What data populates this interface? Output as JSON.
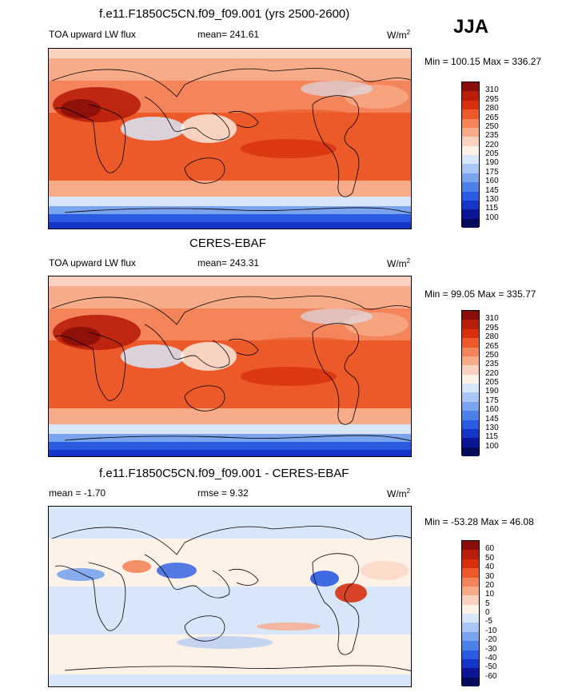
{
  "season": "JJA",
  "unit": "W/m",
  "unit_sup": "2",
  "panels": [
    {
      "title": "f.e11.F1850C5CN.f09_f09.001 (yrs 2500-2600)",
      "left": "TOA upward LW flux",
      "stat": "mean= 241.61",
      "minmax": "Min = 100.15 Max = 336.27",
      "levels": [
        "310",
        "295",
        "280",
        "265",
        "250",
        "235",
        "220",
        "205",
        "190",
        "175",
        "160",
        "145",
        "130",
        "115",
        "100"
      ],
      "colors": [
        "#8b0d0a",
        "#b81e0a",
        "#d8300e",
        "#ec5a2a",
        "#f4845a",
        "#f8ab89",
        "#fbd2bf",
        "#fdf1e8",
        "#d7e6f8",
        "#a9c6f4",
        "#7aa4ee",
        "#4d80e8",
        "#2a5be0",
        "#1535c8",
        "#0a1696",
        "#040a5a"
      ],
      "map": {
        "sanom": false
      }
    },
    {
      "title": "CERES-EBAF",
      "left": "TOA upward LW flux",
      "stat": "mean= 243.31",
      "minmax": "Min =  99.05 Max = 335.77",
      "levels": [
        "310",
        "295",
        "280",
        "265",
        "250",
        "235",
        "220",
        "205",
        "190",
        "175",
        "160",
        "145",
        "130",
        "115",
        "100"
      ],
      "colors": [
        "#8b0d0a",
        "#b81e0a",
        "#d8300e",
        "#ec5a2a",
        "#f4845a",
        "#f8ab89",
        "#fbd2bf",
        "#fdf1e8",
        "#d7e6f8",
        "#a9c6f4",
        "#7aa4ee",
        "#4d80e8",
        "#2a5be0",
        "#1535c8",
        "#0a1696",
        "#040a5a"
      ],
      "map": {
        "sanom": false
      }
    },
    {
      "title": "f.e11.F1850C5CN.f09_f09.001 - CERES-EBAF",
      "left": "mean =  -1.70",
      "stat": "rmse =   9.32",
      "minmax": "Min = -53.28 Max =  46.08",
      "levels": [
        "60",
        "50",
        "40",
        "30",
        "20",
        "10",
        "5",
        "0",
        "-5",
        "-10",
        "-20",
        "-30",
        "-40",
        "-50",
        "-60"
      ],
      "colors": [
        "#8b0d0a",
        "#b81e0a",
        "#d8300e",
        "#ec5a2a",
        "#f4845a",
        "#f8ab89",
        "#fbd2bf",
        "#fdf1e8",
        "#d7e6f8",
        "#a9c6f4",
        "#7aa4ee",
        "#4d80e8",
        "#2a5be0",
        "#1535c8",
        "#0a1696",
        "#040a5a"
      ],
      "map": {
        "sanom": true
      }
    }
  ]
}
